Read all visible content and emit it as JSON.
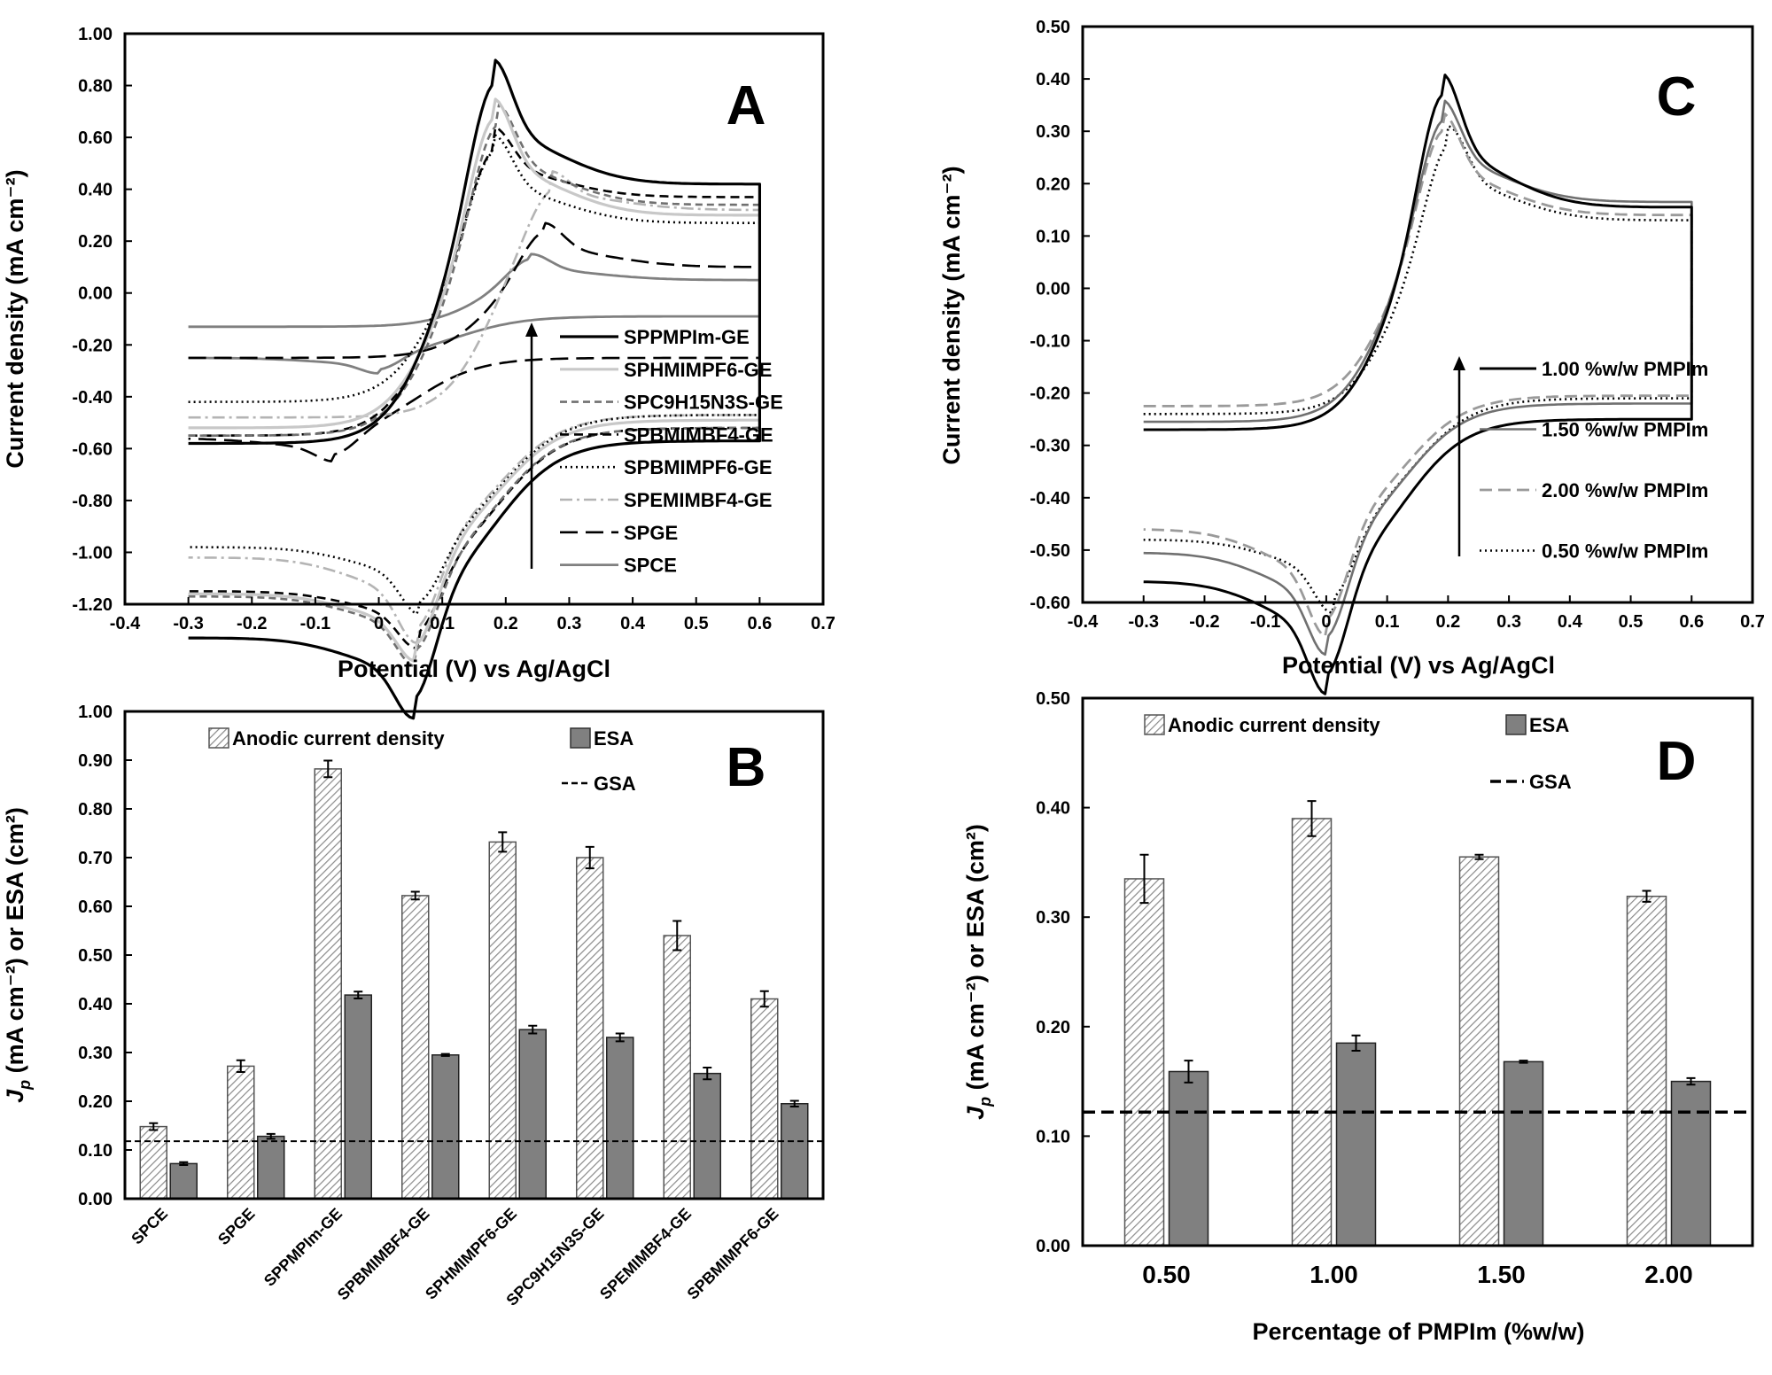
{
  "chart_data": [
    {
      "panel": "A",
      "type": "line",
      "xlabel": "Potential (V) vs Ag/AgCl",
      "ylabel": "Current density (mA cm⁻²)",
      "xlim": [
        -0.4,
        0.7
      ],
      "ylim": [
        -1.2,
        1.0
      ],
      "xticks": [
        "-0.4",
        "-0.3",
        "-0.2",
        "-0.1",
        "0",
        "0.1",
        "0.2",
        "0.3",
        "0.4",
        "0.5",
        "0.6",
        "0.7"
      ],
      "yticks": [
        "-1.20",
        "-1.00",
        "-0.80",
        "-0.60",
        "-0.40",
        "-0.20",
        "0.00",
        "0.20",
        "0.40",
        "0.60",
        "0.80",
        "1.00"
      ],
      "legend_order": [
        "SPPMPIm-GE",
        "SPHMIMPF6-GE",
        "SPC9H15N3S-GE",
        "SPBMIMBF4-GE",
        "SPBMIMPF6-GE",
        "SPEMIMBF4-GE",
        "SPGE",
        "SPCE"
      ],
      "series": [
        {
          "name": "SPPMPIm-GE",
          "color": "#000000",
          "dash": "",
          "width": 3.2,
          "Epa": 0.18,
          "Ipa": 0.9,
          "Epc": 0.055,
          "Ipc": -1.04,
          "Rmin": -0.6,
          "Rmax": 0.42,
          "Lmin": -0.73,
          "Lmax": -0.58,
          "ox": -0.1
        },
        {
          "name": "SPHMIMPF6-GE",
          "color": "#c8c8c8",
          "dash": "",
          "width": 3.2,
          "Epa": 0.18,
          "Ipa": 0.75,
          "Epc": 0.058,
          "Ipc": -0.9,
          "Rmin": -0.52,
          "Rmax": 0.3,
          "Lmin": -0.64,
          "Lmax": -0.52,
          "ox": -0.1
        },
        {
          "name": "SPC9H15N3S-GE",
          "color": "#707070",
          "dash": "8,5",
          "width": 2.6,
          "Epa": 0.185,
          "Ipa": 0.73,
          "Epc": 0.058,
          "Ipc": -0.89,
          "Rmin": -0.55,
          "Rmax": 0.34,
          "Lmin": -0.62,
          "Lmax": -0.55,
          "ox": -0.1
        },
        {
          "name": "SPBMIMBF4-GE",
          "color": "#000000",
          "dash": "10,6",
          "width": 2.6,
          "Epa": 0.18,
          "Ipa": 0.64,
          "Epc": 0.06,
          "Ipc": -0.82,
          "Rmin": -0.55,
          "Rmax": 0.37,
          "Lmin": -0.6,
          "Lmax": -0.55,
          "ox": -0.1
        },
        {
          "name": "SPBMIMPF6-GE",
          "color": "#000000",
          "dash": "2,4",
          "width": 2.6,
          "Epa": 0.18,
          "Ipa": 0.61,
          "Epc": 0.065,
          "Ipc": -0.74,
          "Rmin": -0.5,
          "Rmax": 0.27,
          "Lmin": -0.48,
          "Lmax": -0.42,
          "ox": -0.08
        },
        {
          "name": "SPEMIMBF4-GE",
          "color": "#b4b4b4",
          "dash": "14,5,3,5",
          "width": 2.6,
          "Epa": 0.27,
          "Ipa": 0.47,
          "Epc": 0.06,
          "Ipc": -0.85,
          "Rmin": -0.5,
          "Rmax": 0.32,
          "Lmin": -0.52,
          "Lmax": -0.48,
          "ox": -0.06
        },
        {
          "name": "SPGE",
          "color": "#000000",
          "dash": "20,9",
          "width": 2.6,
          "Epa": 0.26,
          "Ipa": 0.27,
          "Epc": -0.07,
          "Ipc": -0.37,
          "Rmin": -0.28,
          "Rmax": 0.1,
          "Lmin": -0.28,
          "Lmax": -0.25,
          "ox": -0.05
        },
        {
          "name": "SPCE",
          "color": "#808080",
          "dash": "",
          "width": 2.8,
          "Epa": 0.24,
          "Ipa": 0.15,
          "Epc": 0.0,
          "Ipc": -0.19,
          "Rmin": -0.12,
          "Rmax": 0.05,
          "Lmin": -0.13,
          "Lmax": -0.13,
          "ox": -0.05
        }
      ]
    },
    {
      "panel": "B",
      "type": "bar",
      "ylabel_main": "J",
      "ylabel_sub": "p",
      "ylabel_rest": " (mA cm⁻²) or ESA (cm²)",
      "ylim": [
        0,
        1.0
      ],
      "yticks": [
        "0.00",
        "0.10",
        "0.20",
        "0.30",
        "0.40",
        "0.50",
        "0.60",
        "0.70",
        "0.80",
        "0.90",
        "1.00"
      ],
      "categories": [
        "SPCE",
        "SPGE",
        "SPPMPIm-GE",
        "SPBMIMBF4-GE",
        "SPHMIMPF6-GE",
        "SPC9H15N3S-GE",
        "SPEMIMBF4-GE",
        "SPBMIMPF6-GE"
      ],
      "series": [
        {
          "name": "Anodic current density",
          "values": [
            0.148,
            0.272,
            0.882,
            0.622,
            0.732,
            0.7,
            0.54,
            0.41
          ],
          "errors": [
            0.007,
            0.012,
            0.017,
            0.008,
            0.02,
            0.022,
            0.03,
            0.016
          ]
        },
        {
          "name": "ESA",
          "values": [
            0.072,
            0.128,
            0.418,
            0.295,
            0.347,
            0.331,
            0.257,
            0.195
          ],
          "errors": [
            0.003,
            0.005,
            0.007,
            0.002,
            0.008,
            0.008,
            0.012,
            0.006
          ]
        }
      ],
      "gsa": 0.118,
      "gsa_label": "GSA"
    },
    {
      "panel": "C",
      "type": "line",
      "xlabel": "Potential (V) vs Ag/AgCl",
      "ylabel": "Current density (mA cm⁻²)",
      "xlim": [
        -0.4,
        0.7
      ],
      "ylim": [
        -0.6,
        0.5
      ],
      "xticks": [
        "-0.4",
        "-0.3",
        "-0.2",
        "-0.1",
        "0",
        "0.1",
        "0.2",
        "0.3",
        "0.4",
        "0.5",
        "0.6",
        "0.7"
      ],
      "yticks": [
        "-0.60",
        "-0.50",
        "-0.40",
        "-0.30",
        "-0.20",
        "-0.10",
        "0.00",
        "0.10",
        "0.20",
        "0.30",
        "0.40",
        "0.50"
      ],
      "legend_order": [
        "1.00 %w/w PMPIm",
        "1.50 %w/w PMPIm",
        "2.00 %w/w PMPIm",
        "0.50 %w/w PMPIm"
      ],
      "series": [
        {
          "name": "1.00 %w/w PMPIm",
          "color": "#000000",
          "dash": "",
          "width": 3.0,
          "Epa": 0.19,
          "Ipa": 0.41,
          "Epc": 0.0,
          "Ipc": -0.495,
          "Rmin": -0.28,
          "Rmax": 0.155,
          "Lmin": -0.28,
          "Lmax": -0.27,
          "ox": -0.03
        },
        {
          "name": "1.50 %w/w PMPIm",
          "color": "#707070",
          "dash": "",
          "width": 2.6,
          "Epa": 0.19,
          "Ipa": 0.36,
          "Epc": 0.0,
          "Ipc": -0.45,
          "Rmin": -0.25,
          "Rmax": 0.165,
          "Lmin": -0.255,
          "Lmax": -0.255,
          "ox": -0.03
        },
        {
          "name": "2.00 %w/w PMPIm",
          "color": "#9a9a9a",
          "dash": "14,7",
          "width": 2.8,
          "Epa": 0.19,
          "Ipa": 0.335,
          "Epc": 0.0,
          "Ipc": -0.43,
          "Rmin": -0.235,
          "Rmax": 0.14,
          "Lmin": -0.225,
          "Lmax": -0.225,
          "ox": -0.03
        },
        {
          "name": "0.50 %w/w PMPIm",
          "color": "#000000",
          "dash": "2,4",
          "width": 2.6,
          "Epa": 0.2,
          "Ipa": 0.31,
          "Epc": 0.01,
          "Ipc": -0.38,
          "Rmin": -0.24,
          "Rmax": 0.13,
          "Lmin": -0.24,
          "Lmax": -0.24,
          "ox": -0.03
        }
      ]
    },
    {
      "panel": "D",
      "type": "bar",
      "xlabel": "Percentage of PMPIm (%w/w)",
      "ylabel_main": "J",
      "ylabel_sub": "p",
      "ylabel_rest": " (mA cm⁻²) or ESA (cm²)",
      "ylim": [
        0,
        0.5
      ],
      "yticks": [
        "0.00",
        "0.10",
        "0.20",
        "0.30",
        "0.40",
        "0.50"
      ],
      "categories": [
        "0.50",
        "1.00",
        "1.50",
        "2.00"
      ],
      "series": [
        {
          "name": "Anodic current density",
          "values": [
            0.335,
            0.39,
            0.355,
            0.319
          ],
          "errors": [
            0.022,
            0.016,
            0.002,
            0.005
          ]
        },
        {
          "name": "ESA",
          "values": [
            0.159,
            0.185,
            0.168,
            0.15
          ],
          "errors": [
            0.01,
            0.007,
            0.001,
            0.003
          ]
        }
      ],
      "gsa": 0.122,
      "gsa_label": "GSA"
    }
  ]
}
